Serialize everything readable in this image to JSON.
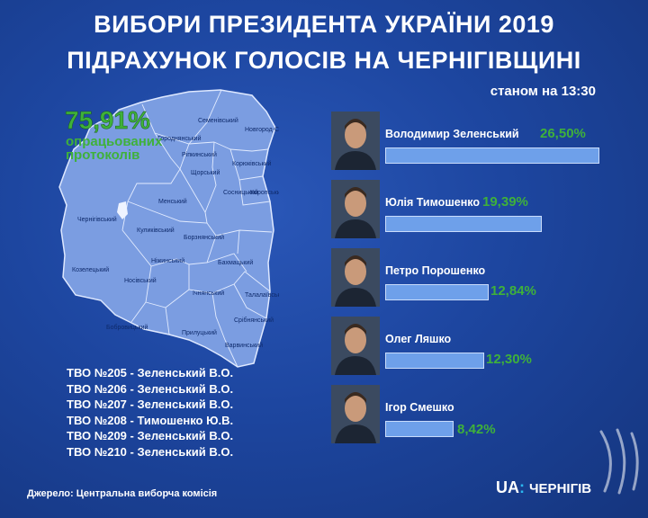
{
  "title_line1": "ВИБОРИ ПРЕЗИДЕНТА УКРАЇНИ 2019",
  "title_line2": "ПІДРАХУНОК ГОЛОСІВ НА ЧЕРНІГІВЩИНІ",
  "as_of": "станом на 13:30",
  "protocols": {
    "percent": "75,91%",
    "label_line1": "опрацьованих",
    "label_line2": "протоколів"
  },
  "map_districts": [
    "Семенівський",
    "Новгород-Сіверський",
    "Городнянський",
    "Ріпкинський",
    "Корюківський",
    "Щорський",
    "Сосницький",
    "Коропський",
    "Чернігівський",
    "Менський",
    "Куликівський",
    "Борзнянський",
    "Козелецький",
    "Ніжинський",
    "Бахмацький",
    "Носівський",
    "Ічнянський",
    "Талалаївський",
    "Бобровицький",
    "Прилуцький",
    "Срібнянський",
    "Варвинський"
  ],
  "chart_data": {
    "type": "bar",
    "orientation": "horizontal",
    "categories": [
      "Володимир Зеленський",
      "Юлія Тимошенко",
      "Петро Порошенко",
      "Олег Ляшко",
      "Ігор Смешко"
    ],
    "values": [
      26.5,
      19.39,
      12.84,
      12.3,
      8.42
    ],
    "value_labels": [
      "26,50%",
      "19,39%",
      "12,84%",
      "12,30%",
      "8,42%"
    ],
    "bar_color": "#6ea0ea",
    "label_color": "#3fb13a"
  },
  "districts": [
    "ТВО №205 - Зеленський В.О.",
    "ТВО №206 - Зеленський В.О.",
    "ТВО №207 - Зеленський В.О.",
    "ТВО №208 - Тимошенко Ю.В.",
    "ТВО №209 - Зеленський В.О.",
    "ТВО №210 - Зеленський В.О."
  ],
  "source": "Джерело: Центральна виборча комісія",
  "logo": {
    "ua": "UA",
    "colon": ":",
    "city": "ЧЕРНІГІВ"
  }
}
